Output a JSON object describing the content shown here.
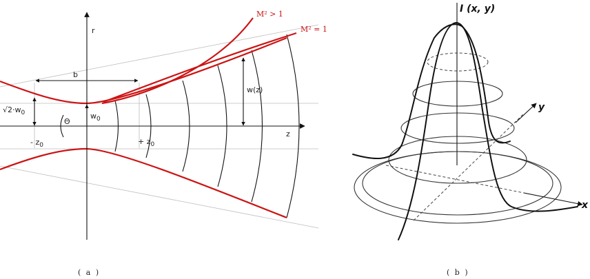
{
  "panel_a": {
    "axis_r": "r",
    "axis_z": "z",
    "label_b": "b",
    "label_w0": "w",
    "label_w0_sub": "0",
    "label_sqrt2": "√2·w",
    "label_sqrt2_sub": "0",
    "label_wz": "w(z)",
    "label_theta": "Θ",
    "label_minus_z0": "- z",
    "label_minus_z0_sub": "0",
    "label_plus_z0": "+ z",
    "label_plus_z0_sub": "0",
    "curve_m2_gt": "M² > 1",
    "curve_m2_eq": "M² = 1",
    "caption": "( a )",
    "colors": {
      "beam": "#cc1414",
      "ink": "#111111",
      "guide": "#bdbdbd"
    }
  },
  "panel_b": {
    "axis_i": "I (x, y)",
    "axis_y": "y",
    "axis_x": "x",
    "caption": "( b )"
  }
}
